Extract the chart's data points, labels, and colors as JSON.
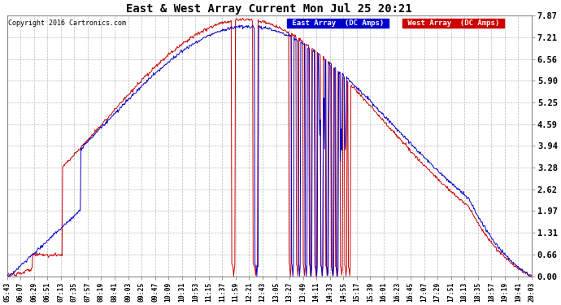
{
  "title": "East & West Array Current Mon Jul 25 20:21",
  "copyright": "Copyright 2016 Cartronics.com",
  "legend_east": "East Array  (DC Amps)",
  "legend_west": "West Array  (DC Amps)",
  "east_color": "#0000cc",
  "west_color": "#cc0000",
  "fig_bg": "#ffffff",
  "plot_bg": "#ffffff",
  "border_color": "#aaaaaa",
  "yticks": [
    0.0,
    0.66,
    1.31,
    1.97,
    2.62,
    3.28,
    3.94,
    4.59,
    5.25,
    5.9,
    6.56,
    7.21,
    7.87
  ],
  "ylim": [
    0.0,
    7.87
  ],
  "xtick_labels": [
    "05:43",
    "06:07",
    "06:29",
    "06:51",
    "07:13",
    "07:35",
    "07:57",
    "08:19",
    "08:41",
    "09:03",
    "09:25",
    "09:47",
    "10:09",
    "10:31",
    "10:53",
    "11:15",
    "11:37",
    "11:59",
    "12:21",
    "12:43",
    "13:05",
    "13:27",
    "13:49",
    "14:11",
    "14:33",
    "14:55",
    "15:17",
    "15:39",
    "16:01",
    "16:23",
    "16:45",
    "17:07",
    "17:29",
    "17:51",
    "18:13",
    "18:35",
    "18:57",
    "19:19",
    "19:41",
    "20:03"
  ],
  "n_points": 860,
  "figsize": [
    6.9,
    3.75
  ],
  "dpi": 100
}
